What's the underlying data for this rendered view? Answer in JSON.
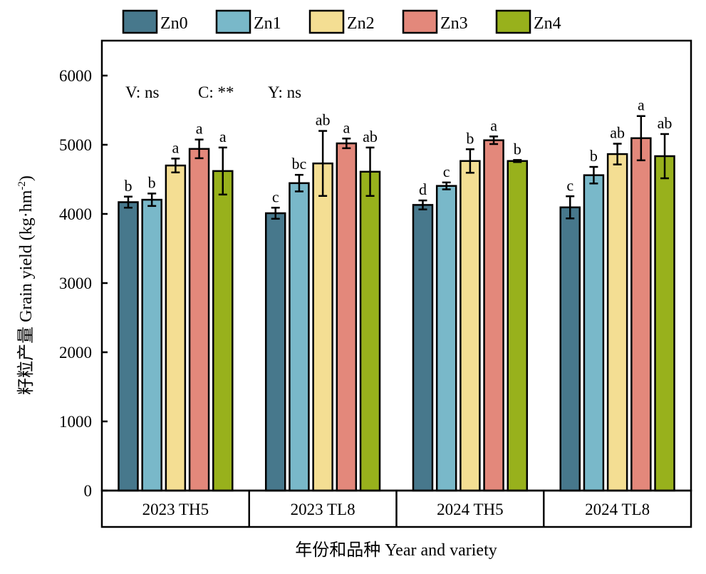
{
  "chart_data": {
    "type": "bar",
    "title": "",
    "xlabel": "年份和品种 Year and variety",
    "ylabel": "籽粒产量 Grain yield (kg·hm",
    "ylabel_superscript": "-2",
    "ylabel_suffix": ")",
    "ylim": [
      0,
      6500
    ],
    "yticks": [
      0,
      1000,
      2000,
      3000,
      4000,
      5000,
      6000
    ],
    "ytick_labels": [
      "0",
      "1000",
      "2000",
      "3000",
      "4000",
      "5000",
      "6000"
    ],
    "grid": false,
    "legend_position": "top-center",
    "categories": [
      "2023 TH5",
      "2023 TL8",
      "2024 TH5",
      "2024 TL8"
    ],
    "annotations": [
      "V: ns",
      "C: **",
      "Y: ns"
    ],
    "series": [
      {
        "name": "Zn0",
        "color": "#47788c",
        "values": [
          4170,
          4010,
          4130,
          4095
        ],
        "errors": [
          80,
          80,
          65,
          160
        ],
        "labels": [
          "b",
          "c",
          "d",
          "c"
        ]
      },
      {
        "name": "Zn1",
        "color": "#79b8c9",
        "values": [
          4205,
          4445,
          4405,
          4560
        ],
        "errors": [
          90,
          120,
          50,
          120
        ],
        "labels": [
          "b",
          "bc",
          "c",
          "b"
        ]
      },
      {
        "name": "Zn2",
        "color": "#f4de93",
        "values": [
          4700,
          4730,
          4765,
          4865
        ],
        "errors": [
          100,
          470,
          170,
          150
        ],
        "labels": [
          "a",
          "ab",
          "b",
          "ab"
        ]
      },
      {
        "name": "Zn3",
        "color": "#e3887b",
        "values": [
          4940,
          5020,
          5065,
          5095
        ],
        "errors": [
          135,
          70,
          55,
          320
        ],
        "labels": [
          "a",
          "a",
          "a",
          "a"
        ]
      },
      {
        "name": "Zn4",
        "color": "#98b11c",
        "values": [
          4620,
          4610,
          4765,
          4835
        ],
        "errors": [
          340,
          350,
          15,
          320
        ],
        "labels": [
          "a",
          "ab",
          "b",
          "ab"
        ]
      }
    ]
  }
}
